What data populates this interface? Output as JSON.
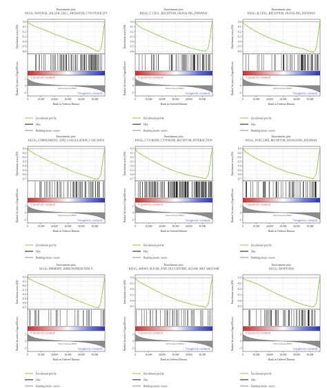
{
  "common": {
    "title_prefix": "Enrichment plot:",
    "ylabel_es": "Enrichment score (ES)",
    "ylabel_metric": "Ranked list metric (Signal2Noise)",
    "xlabel": "Rank in Ordered Dataset",
    "pos_label": "'h' (positively correlated)",
    "neg_label": "'l' (negatively correlated)",
    "zero_cross": "Zero cross at 29647",
    "legend": [
      "Enrichment profile",
      "Hits",
      "Ranking metric scores"
    ],
    "colors": {
      "profile": "#8fc641",
      "hits": "#111111",
      "metric": "#8c8c8c",
      "pos": "#d43a3a",
      "neg": "#3a48c8",
      "grid": "#b0b0b0"
    }
  },
  "chart_data": [
    {
      "type": "line",
      "title": "KEGG_NATURAL_KILLER_CELL_MEDIATED_CYTOTOXICITY",
      "xlim": [
        0,
        57500
      ],
      "xticks": [
        0,
        10000,
        20000,
        30000,
        40000,
        50000
      ],
      "ylim": [
        -0.65,
        0.05
      ],
      "yticks": [
        0.0,
        -0.1,
        -0.2,
        -0.3,
        -0.4,
        -0.5,
        -0.6
      ],
      "metric_ticks": [
        2,
        0,
        -2
      ],
      "es_curve": {
        "x": [
          0,
          1000,
          5000,
          10000,
          15000,
          20000,
          25000,
          30000,
          35000,
          40000,
          45000,
          50000,
          52500,
          54500,
          55500,
          56500,
          57500
        ],
        "y": [
          0,
          -0.03,
          -0.09,
          -0.14,
          -0.19,
          -0.25,
          -0.3,
          -0.35,
          -0.4,
          -0.45,
          -0.5,
          -0.57,
          -0.6,
          -0.55,
          -0.4,
          -0.15,
          0
        ]
      },
      "hit_seed": 11,
      "hit_count": 70
    },
    {
      "type": "line",
      "title": "KEGG_T_CELL_RECEPTOR_SIGNALING_PATHWAY",
      "xlim": [
        0,
        57500
      ],
      "xticks": [
        0,
        10000,
        20000,
        30000,
        40000,
        50000
      ],
      "ylim": [
        -0.65,
        0.05
      ],
      "yticks": [
        0.0,
        -0.1,
        -0.2,
        -0.3,
        -0.4,
        -0.5,
        -0.6
      ],
      "metric_ticks": [
        2,
        0,
        -2
      ],
      "es_curve": {
        "x": [
          0,
          1000,
          5000,
          10000,
          15000,
          20000,
          25000,
          30000,
          35000,
          40000,
          45000,
          50000,
          52500,
          54500,
          55500,
          56500,
          57500
        ],
        "y": [
          0,
          -0.05,
          -0.13,
          -0.19,
          -0.25,
          -0.31,
          -0.37,
          -0.42,
          -0.47,
          -0.52,
          -0.56,
          -0.59,
          -0.6,
          -0.52,
          -0.35,
          -0.12,
          0
        ]
      },
      "hit_seed": 23,
      "hit_count": 55
    },
    {
      "type": "line",
      "title": "KEGG_B_CELL_RECEPTOR_SIGNALING_PATHWAY",
      "xlim": [
        0,
        57500
      ],
      "xticks": [
        0,
        10000,
        20000,
        30000,
        40000,
        50000
      ],
      "ylim": [
        -0.65,
        0.05
      ],
      "yticks": [
        0.0,
        -0.1,
        -0.2,
        -0.3,
        -0.4,
        -0.5,
        -0.6
      ],
      "metric_ticks": [
        2,
        0,
        -2
      ],
      "es_curve": {
        "x": [
          0,
          1000,
          5000,
          10000,
          15000,
          20000,
          25000,
          30000,
          35000,
          40000,
          45000,
          50000,
          52500,
          54500,
          55500,
          56500,
          57500
        ],
        "y": [
          0,
          -0.04,
          -0.12,
          -0.2,
          -0.27,
          -0.33,
          -0.38,
          -0.43,
          -0.48,
          -0.52,
          -0.55,
          -0.6,
          -0.62,
          -0.55,
          -0.38,
          -0.15,
          0
        ]
      },
      "hit_seed": 37,
      "hit_count": 50
    },
    {
      "type": "line",
      "title": "KEGG_COMPLEMENT_AND_COAGULATION_CASCADES",
      "xlim": [
        0,
        57500
      ],
      "xticks": [
        0,
        10000,
        20000,
        30000,
        40000,
        50000
      ],
      "ylim": [
        -0.75,
        0.05
      ],
      "yticks": [
        0.0,
        -0.1,
        -0.2,
        -0.3,
        -0.4,
        -0.5,
        -0.6,
        -0.7
      ],
      "metric_ticks": [
        2,
        0,
        -2
      ],
      "es_curve": {
        "x": [
          0,
          1000,
          5000,
          10000,
          15000,
          20000,
          25000,
          30000,
          35000,
          40000,
          45000,
          50000,
          52500,
          54500,
          55500,
          56500,
          57500
        ],
        "y": [
          0,
          -0.04,
          -0.12,
          -0.2,
          -0.28,
          -0.35,
          -0.42,
          -0.48,
          -0.55,
          -0.6,
          -0.65,
          -0.7,
          -0.71,
          -0.6,
          -0.4,
          -0.15,
          0
        ]
      },
      "hit_seed": 41,
      "hit_count": 55
    },
    {
      "type": "line",
      "title": "KEGG_CYTOKINE_CYTOKINE_RECEPTOR_INTERACTION",
      "xlim": [
        0,
        57500
      ],
      "xticks": [
        0,
        10000,
        20000,
        30000,
        40000,
        50000
      ],
      "ylim": [
        -0.75,
        0.05
      ],
      "yticks": [
        0.0,
        -0.1,
        -0.2,
        -0.3,
        -0.4,
        -0.5,
        -0.6,
        -0.7
      ],
      "metric_ticks": [
        2,
        0,
        -2
      ],
      "es_curve": {
        "x": [
          0,
          1000,
          5000,
          10000,
          15000,
          20000,
          25000,
          30000,
          35000,
          40000,
          45000,
          50000,
          52500,
          54500,
          55500,
          56500,
          57500
        ],
        "y": [
          0,
          -0.06,
          -0.15,
          -0.24,
          -0.32,
          -0.4,
          -0.47,
          -0.53,
          -0.58,
          -0.62,
          -0.65,
          -0.68,
          -0.7,
          -0.6,
          -0.4,
          -0.15,
          0
        ]
      },
      "hit_seed": 53,
      "hit_count": 130
    },
    {
      "type": "line",
      "title": "KEGG_NOD_LIKE_RECEPTOR_SIGNALING_PATHWAY",
      "xlim": [
        0,
        57500
      ],
      "xticks": [
        0,
        10000,
        20000,
        30000,
        40000,
        50000
      ],
      "ylim": [
        -0.75,
        0.05
      ],
      "yticks": [
        0.0,
        -0.1,
        -0.2,
        -0.3,
        -0.4,
        -0.5,
        -0.6,
        -0.7
      ],
      "metric_ticks": [
        2,
        0,
        -2
      ],
      "es_curve": {
        "x": [
          0,
          1000,
          5000,
          10000,
          15000,
          20000,
          25000,
          30000,
          35000,
          40000,
          45000,
          50000,
          52500,
          54500,
          55500,
          56500,
          57500
        ],
        "y": [
          0,
          -0.05,
          -0.14,
          -0.23,
          -0.31,
          -0.38,
          -0.45,
          -0.51,
          -0.56,
          -0.6,
          -0.64,
          -0.68,
          -0.7,
          -0.6,
          -0.42,
          -0.15,
          0
        ]
      },
      "hit_seed": 67,
      "hit_count": 55
    },
    {
      "type": "line",
      "title": "KEGG_PRIMARY_IMMUNODEFICIENCY",
      "xlim": [
        0,
        57500
      ],
      "xticks": [
        0,
        10000,
        20000,
        30000,
        40000,
        50000
      ],
      "ylim": [
        -0.75,
        0.05
      ],
      "yticks": [
        0.0,
        -0.1,
        -0.2,
        -0.3,
        -0.4,
        -0.5,
        -0.6,
        -0.7
      ],
      "metric_ticks": [
        2,
        0,
        -2
      ],
      "es_curve": {
        "x": [
          0,
          1000,
          5000,
          10000,
          15000,
          20000,
          25000,
          30000,
          35000,
          40000,
          45000,
          50000,
          52500,
          54500,
          55500,
          56500,
          57500
        ],
        "y": [
          0,
          -0.04,
          -0.1,
          -0.17,
          -0.24,
          -0.31,
          -0.38,
          -0.45,
          -0.52,
          -0.58,
          -0.64,
          -0.7,
          -0.72,
          -0.6,
          -0.4,
          -0.15,
          0
        ]
      },
      "hit_seed": 71,
      "hit_count": 28
    },
    {
      "type": "line",
      "title": "KEGG_AMINO_SUGAR_AND_NUCLEOTIDE_SUGAR_MET ABOLISM",
      "xlim": [
        0,
        57500
      ],
      "xticks": [
        0,
        10000,
        20000,
        30000,
        40000,
        50000
      ],
      "ylim": [
        -0.55,
        0.05
      ],
      "yticks": [
        0.0,
        -0.1,
        -0.2,
        -0.3,
        -0.4,
        -0.5
      ],
      "metric_ticks": [
        2,
        0,
        -2
      ],
      "es_curve": {
        "x": [
          0,
          1000,
          5000,
          10000,
          15000,
          20000,
          25000,
          30000,
          35000,
          40000,
          45000,
          50000,
          52500,
          54500,
          55500,
          56500,
          57500
        ],
        "y": [
          0,
          -0.04,
          -0.1,
          -0.16,
          -0.22,
          -0.28,
          -0.33,
          -0.38,
          -0.42,
          -0.45,
          -0.48,
          -0.5,
          -0.52,
          -0.45,
          -0.3,
          -0.1,
          0
        ]
      },
      "hit_seed": 83,
      "hit_count": 38
    },
    {
      "type": "line",
      "title": "KEGG_APOPTOSIS",
      "xlim": [
        0,
        57500
      ],
      "xticks": [
        0,
        10000,
        20000,
        30000,
        40000,
        50000
      ],
      "ylim": [
        -0.55,
        0.05
      ],
      "yticks": [
        0.0,
        -0.1,
        -0.2,
        -0.3,
        -0.4,
        -0.5
      ],
      "metric_ticks": [
        2,
        0,
        -2
      ],
      "es_curve": {
        "x": [
          0,
          1000,
          5000,
          10000,
          15000,
          20000,
          25000,
          30000,
          35000,
          40000,
          45000,
          50000,
          52500,
          54500,
          55500,
          56500,
          57500
        ],
        "y": [
          0,
          -0.03,
          -0.06,
          -0.1,
          -0.16,
          -0.22,
          -0.28,
          -0.33,
          -0.38,
          -0.43,
          -0.47,
          -0.5,
          -0.51,
          -0.45,
          -0.3,
          -0.1,
          0
        ]
      },
      "hit_seed": 97,
      "hit_count": 55
    }
  ]
}
